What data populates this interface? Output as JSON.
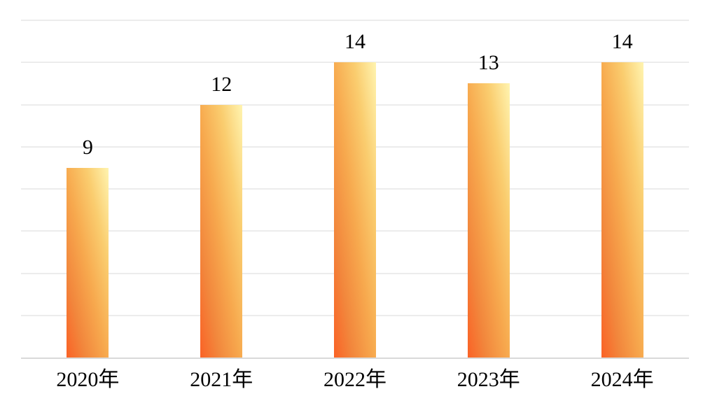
{
  "chart_data": {
    "type": "bar",
    "categories": [
      "2020年",
      "2021年",
      "2022年",
      "2023年",
      "2024年"
    ],
    "values": [
      9,
      12,
      14,
      13,
      14
    ],
    "data_labels": [
      "9",
      "12",
      "14",
      "13",
      "14"
    ],
    "xlabel": "",
    "ylabel": "",
    "ylim": [
      0,
      16
    ],
    "gridline_interval": 2,
    "grid": "horizontal",
    "y_tick_labels_visible": false,
    "legend": "none",
    "colors": {
      "bar_gradient_top": "#FFF4B0",
      "bar_gradient_upper_mid": "#FACD6F",
      "bar_gradient_mid": "#F7A94E",
      "bar_gradient_lower_mid": "#F2863C",
      "bar_gradient_bottom": "#FA6226",
      "gridline": "#ECECEC",
      "baseline": "#D9D9D9",
      "label_text": "#000000",
      "background": "#FFFFFF"
    }
  }
}
